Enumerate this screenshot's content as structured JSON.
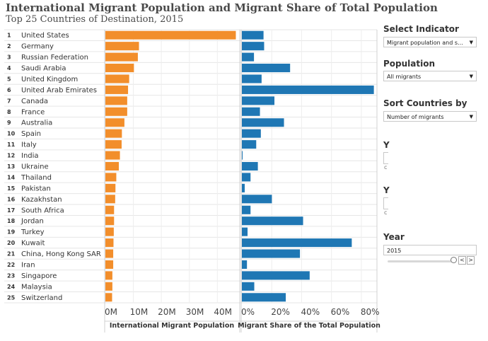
{
  "title": "International Migrant Population and Migrant Share of Total Population",
  "subtitle": "Top 25 Countries of Destination, 2015",
  "controls": {
    "indicator": {
      "label": "Select Indicator",
      "value": "Migrant population and sha...",
      "arrow": "▼"
    },
    "population": {
      "label": "Population",
      "value": "All migrants",
      "arrow": "▼"
    },
    "sort": {
      "label": "Sort Countries by",
      "value": "Number of migrants",
      "arrow": "▼"
    },
    "hidden1": {
      "label": "Y",
      "dot": "c"
    },
    "hidden2": {
      "label": "Y",
      "dot": "c"
    },
    "year": {
      "label": "Year",
      "value": "2015",
      "prev": "<",
      "next": ">"
    }
  },
  "chart_data": [
    {
      "type": "bar",
      "orientation": "horizontal",
      "title": "International Migrant Population",
      "color": "#f28e2b",
      "categories": [
        "United States",
        "Germany",
        "Russian Federation",
        "Saudi Arabia",
        "United Kingdom",
        "United Arab Emirates",
        "Canada",
        "France",
        "Australia",
        "Spain",
        "Italy",
        "India",
        "Ukraine",
        "Thailand",
        "Pakistan",
        "Kazakhstan",
        "South Africa",
        "Jordan",
        "Turkey",
        "Kuwait",
        "China, Hong Kong SAR",
        "Iran",
        "Singapore",
        "Malaysia",
        "Switzerland"
      ],
      "ranks": [
        "1",
        "2",
        "3",
        "4",
        "5",
        "6",
        "7",
        "8",
        "9",
        "10",
        "11",
        "12",
        "13",
        "14",
        "15",
        "16",
        "17",
        "18",
        "19",
        "20",
        "21",
        "22",
        "23",
        "24",
        "25"
      ],
      "values": [
        46.6,
        12.0,
        11.6,
        10.2,
        8.5,
        8.1,
        7.8,
        7.8,
        6.8,
        5.9,
        5.8,
        5.2,
        4.8,
        3.9,
        3.6,
        3.5,
        3.1,
        3.1,
        3.0,
        2.9,
        2.8,
        2.8,
        2.5,
        2.5,
        2.4
      ],
      "xlim": [
        0,
        48
      ],
      "ticks": [
        0,
        10,
        20,
        30,
        40
      ],
      "tick_labels": [
        "0M",
        "10M",
        "20M",
        "30M",
        "40M"
      ]
    },
    {
      "type": "bar",
      "orientation": "horizontal",
      "title": "Migrant Share of the Total Population",
      "color": "#1f77b4",
      "categories": [
        "United States",
        "Germany",
        "Russian Federation",
        "Saudi Arabia",
        "United Kingdom",
        "United Arab Emirates",
        "Canada",
        "France",
        "Australia",
        "Spain",
        "Italy",
        "India",
        "Ukraine",
        "Thailand",
        "Pakistan",
        "Kazakhstan",
        "South Africa",
        "Jordan",
        "Turkey",
        "Kuwait",
        "China, Hong Kong SAR",
        "Iran",
        "Singapore",
        "Malaysia",
        "Switzerland"
      ],
      "values": [
        14.5,
        14.9,
        8.1,
        32.3,
        13.2,
        88.4,
        21.8,
        12.1,
        28.2,
        12.7,
        9.6,
        0.4,
        10.7,
        5.8,
        1.9,
        20.1,
        5.8,
        41.0,
        3.8,
        73.6,
        38.9,
        3.4,
        45.4,
        8.3,
        29.4
      ],
      "xlim": [
        0,
        90
      ],
      "ticks": [
        0,
        20,
        40,
        60,
        80
      ],
      "tick_labels": [
        "0%",
        "20%",
        "40%",
        "60%",
        "80%"
      ]
    }
  ]
}
